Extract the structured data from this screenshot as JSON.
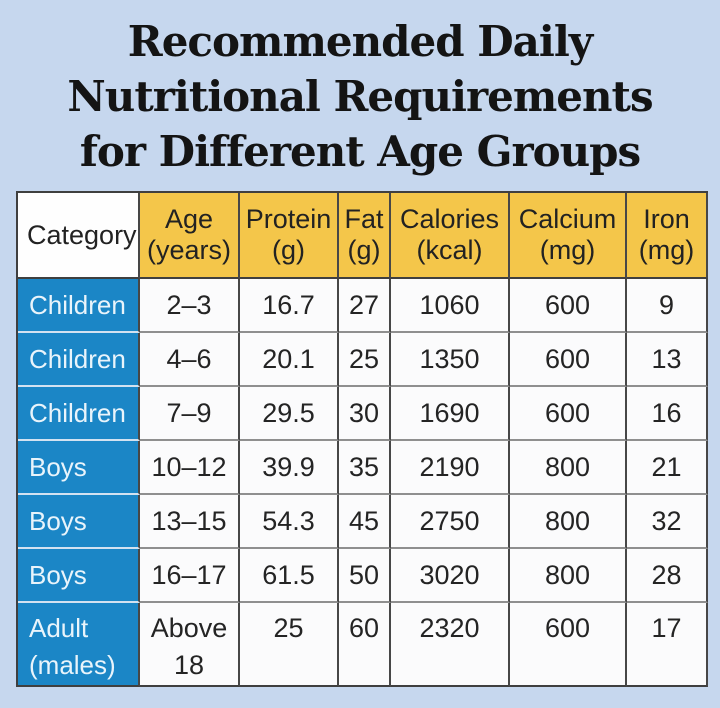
{
  "title": {
    "lines": [
      "Recommended Daily",
      "Nutritional Requirements",
      "for Different Age Groups"
    ]
  },
  "table": {
    "columns": [
      {
        "label": "Category",
        "unit": ""
      },
      {
        "label": "Age",
        "unit": "(years)"
      },
      {
        "label": "Protein",
        "unit": "(g)"
      },
      {
        "label": "Fat",
        "unit": "(g)"
      },
      {
        "label": "Calories",
        "unit": "(kcal)"
      },
      {
        "label": "Calcium",
        "unit": "(mg)"
      },
      {
        "label": "Iron",
        "unit": "(mg)"
      }
    ],
    "rows": [
      {
        "category": "Children",
        "values": [
          "2–3",
          "16.7",
          "27",
          "1060",
          "600",
          "9"
        ]
      },
      {
        "category": "Children",
        "values": [
          "4–6",
          "20.1",
          "25",
          "1350",
          "600",
          "13"
        ]
      },
      {
        "category": "Children",
        "values": [
          "7–9",
          "29.5",
          "30",
          "1690",
          "600",
          "16"
        ]
      },
      {
        "category": "Boys",
        "values": [
          "10–12",
          "39.9",
          "35",
          "2190",
          "800",
          "21"
        ]
      },
      {
        "category": "Boys",
        "values": [
          "13–15",
          "54.3",
          "45",
          "2750",
          "800",
          "32"
        ]
      },
      {
        "category": "Boys",
        "values": [
          "16–17",
          "61.5",
          "50",
          "3020",
          "800",
          "28"
        ]
      },
      {
        "category": "Adult (males)",
        "values": [
          "Above 18",
          "25",
          "60",
          "2320",
          "600",
          "17"
        ]
      }
    ]
  },
  "colors": {
    "page_background": "#c6d7ee",
    "header_background": "#f4c64a",
    "category_background": "#1b86c6",
    "category_text": "#e9f4fb",
    "cell_background": "#fbfbfc",
    "border_dark": "#3f3f3f",
    "row_divider_gray": "#8f8f8f",
    "row_divider_light": "#d3e2f1",
    "title_text": "#141414"
  },
  "chart_data": {
    "type": "table",
    "title": "Recommended Daily Nutritional Requirements for Different Age Groups",
    "columns": [
      "Category",
      "Age (years)",
      "Protein (g)",
      "Fat (g)",
      "Calories (kcal)",
      "Calcium (mg)",
      "Iron (mg)"
    ],
    "rows": [
      [
        "Children",
        "2–3",
        16.7,
        27,
        1060,
        600,
        9
      ],
      [
        "Children",
        "4–6",
        20.1,
        25,
        1350,
        600,
        13
      ],
      [
        "Children",
        "7–9",
        29.5,
        30,
        1690,
        600,
        16
      ],
      [
        "Boys",
        "10–12",
        39.9,
        35,
        2190,
        800,
        21
      ],
      [
        "Boys",
        "13–15",
        54.3,
        45,
        2750,
        800,
        32
      ],
      [
        "Boys",
        "16–17",
        61.5,
        50,
        3020,
        800,
        28
      ],
      [
        "Adult (males)",
        "Above 18",
        25,
        60,
        2320,
        600,
        17
      ]
    ]
  }
}
